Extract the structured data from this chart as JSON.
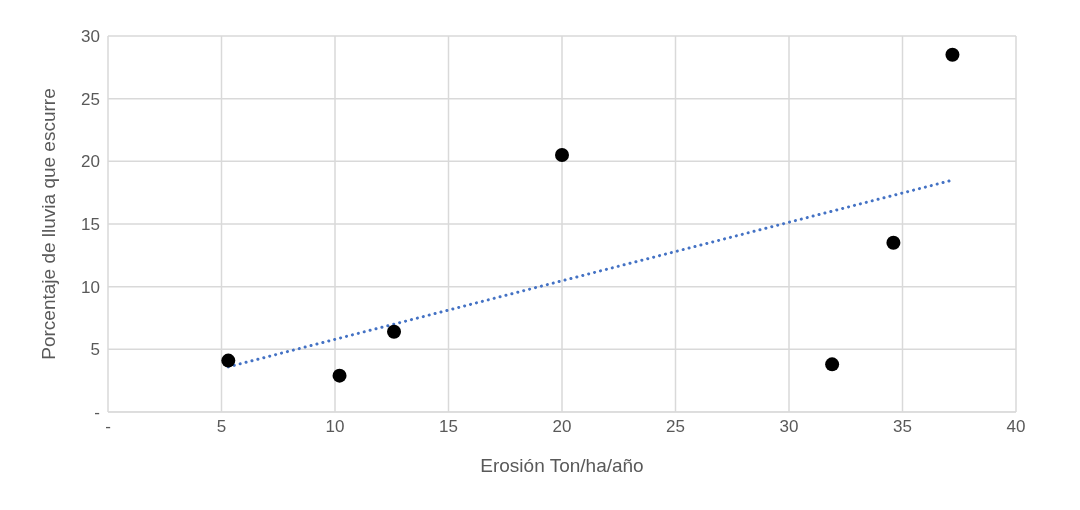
{
  "chart_data": {
    "type": "scatter",
    "xlabel": "Erosión Ton/ha/año",
    "ylabel": "Porcentaje de lluvia que escurre",
    "x": [
      5.3,
      10.2,
      12.6,
      20.0,
      31.9,
      34.6,
      37.2
    ],
    "series": [
      {
        "color": "#000000",
        "values": [
          4.1,
          2.9,
          6.4,
          20.5,
          3.8,
          13.5,
          28.5
        ]
      },
      {
        "type": "line",
        "color": "#4472c4",
        "line_style": "dotted",
        "marker": "none",
        "x": [
          5.3,
          37.2
        ],
        "values": [
          3.6,
          18.5
        ]
      }
    ],
    "xlim": [
      0,
      40
    ],
    "xticks": [
      {
        "value": 0,
        "label": "-"
      },
      5,
      10,
      15,
      20,
      25,
      30,
      35,
      40
    ],
    "ylim": [
      0,
      30
    ],
    "yticks": [
      {
        "value": 0,
        "label": "-"
      },
      5,
      10,
      15,
      20,
      25,
      30
    ],
    "grid": true,
    "marker": "circle"
  }
}
